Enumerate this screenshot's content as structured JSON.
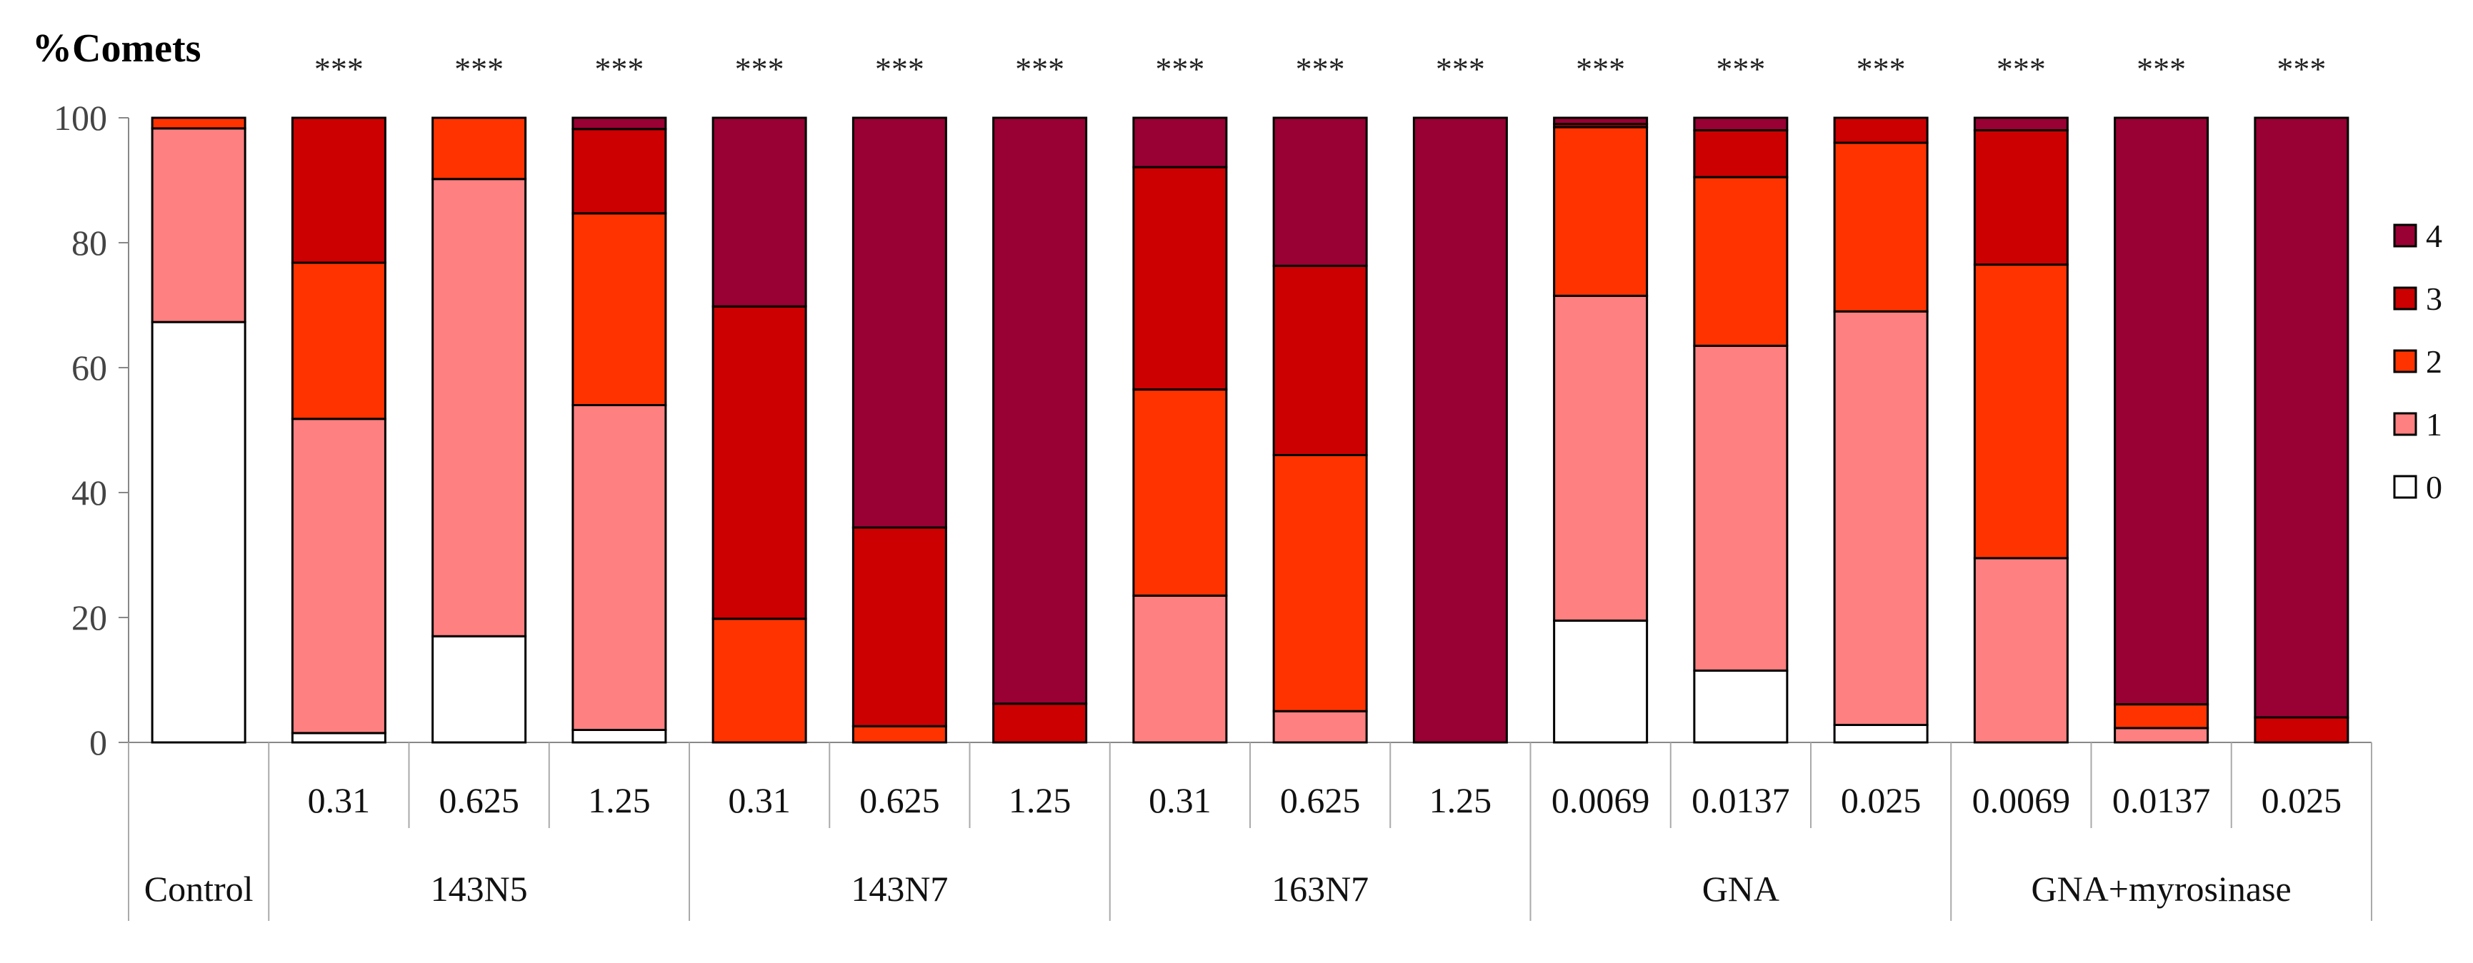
{
  "chart_data": {
    "type": "bar",
    "stacked": true,
    "ylabel": "%Comets",
    "ylim": [
      0,
      100
    ],
    "yticks": [
      0,
      20,
      40,
      60,
      80,
      100
    ],
    "legend_position": "right",
    "significance": "***",
    "columns": [
      {
        "concentration": "",
        "group": "Control",
        "significance": ""
      },
      {
        "concentration": "0.31",
        "group": "143N5",
        "significance": "***"
      },
      {
        "concentration": "0.625",
        "group": "143N5",
        "significance": "***"
      },
      {
        "concentration": "1.25",
        "group": "143N5",
        "significance": "***"
      },
      {
        "concentration": "0.31",
        "group": "143N7",
        "significance": "***"
      },
      {
        "concentration": "0.625",
        "group": "143N7",
        "significance": "***"
      },
      {
        "concentration": "1.25",
        "group": "143N7",
        "significance": "***"
      },
      {
        "concentration": "0.31",
        "group": "163N7",
        "significance": "***"
      },
      {
        "concentration": "0.625",
        "group": "163N7",
        "significance": "***"
      },
      {
        "concentration": "1.25",
        "group": "163N7",
        "significance": "***"
      },
      {
        "concentration": "0.0069",
        "group": "GNA",
        "significance": "***"
      },
      {
        "concentration": "0.0137",
        "group": "GNA",
        "significance": "***"
      },
      {
        "concentration": "0.025",
        "group": "GNA",
        "significance": "***"
      },
      {
        "concentration": "0.0069",
        "group": "GNA+myrosinase",
        "significance": "***"
      },
      {
        "concentration": "0.0137",
        "group": "GNA+myrosinase",
        "significance": "***"
      },
      {
        "concentration": "0.025",
        "group": "GNA+myrosinase",
        "significance": "***"
      }
    ],
    "groups": [
      {
        "label": "Control",
        "span": 1
      },
      {
        "label": "143N5",
        "span": 3
      },
      {
        "label": "143N7",
        "span": 3
      },
      {
        "label": "163N7",
        "span": 3
      },
      {
        "label": "GNA",
        "span": 3
      },
      {
        "label": "GNA+myrosinase",
        "span": 3
      }
    ],
    "series": [
      {
        "name": "0",
        "color": "#ffffff",
        "values": [
          67.3,
          1.5,
          17,
          2,
          0,
          0,
          0,
          0,
          0,
          0,
          19.5,
          11.5,
          2.8,
          0,
          0,
          0
        ]
      },
      {
        "name": "1",
        "color": "#ff8080",
        "values": [
          31,
          50.3,
          73.2,
          52,
          0,
          0,
          0,
          23.5,
          5,
          0,
          52,
          52,
          66.2,
          29.5,
          2.3,
          0
        ]
      },
      {
        "name": "2",
        "color": "#ff3300",
        "values": [
          1.7,
          25,
          9.8,
          30.7,
          19.8,
          2.6,
          0,
          33,
          41,
          0,
          27,
          27,
          27,
          47,
          3.8,
          0
        ]
      },
      {
        "name": "3",
        "color": "#cc0000",
        "values": [
          0,
          23.2,
          0,
          13.5,
          50,
          31.8,
          6.2,
          35.6,
          30.3,
          0,
          0.5,
          7.5,
          4,
          21.5,
          0,
          4
        ]
      },
      {
        "name": "4",
        "color": "#990033",
        "values": [
          0,
          0,
          0,
          1.8,
          30.2,
          65.6,
          93.8,
          7.9,
          23.7,
          100,
          1,
          2,
          0,
          2,
          93.9,
          96
        ]
      }
    ]
  }
}
